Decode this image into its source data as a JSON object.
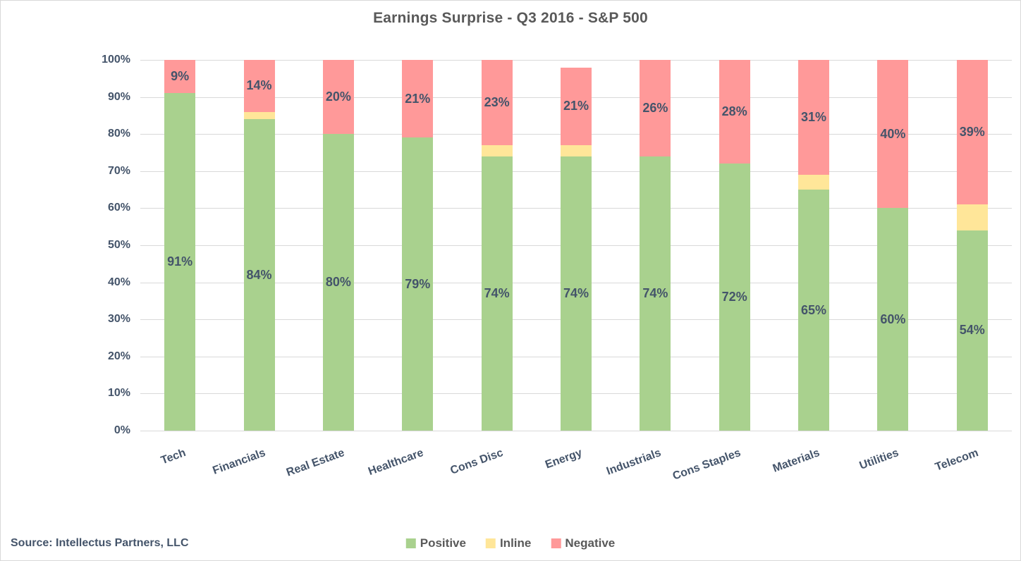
{
  "title": "Earnings Surprise - Q3 2016 - S&P 500",
  "source_text": "Source: Intellectus Partners, LLC",
  "colors": {
    "positive": "#A9D18E",
    "inline": "#FFE699",
    "negative": "#FF9999",
    "axis_text": "#44546A",
    "title_text": "#595959",
    "gridline": "#D9D9D9"
  },
  "legend": {
    "items": [
      {
        "label": "Positive",
        "color": "#A9D18E"
      },
      {
        "label": "Inline",
        "color": "#FFE699"
      },
      {
        "label": "Negative",
        "color": "#FF9999"
      }
    ]
  },
  "chart_data": {
    "type": "bar",
    "stacked": true,
    "title": "Earnings Surprise - Q3 2016 - S&P 500",
    "categories": [
      "Tech",
      "Financials",
      "Real Estate",
      "Healthcare",
      "Cons Disc",
      "Energy",
      "Industrials",
      "Cons Staples",
      "Materials",
      "Utilities",
      "Telecom"
    ],
    "series": [
      {
        "name": "Positive",
        "color": "#A9D18E",
        "values": [
          91,
          84,
          80,
          79,
          74,
          74,
          74,
          72,
          65,
          60,
          54
        ],
        "labels_visible": true
      },
      {
        "name": "Inline",
        "color": "#FFE699",
        "values": [
          0,
          2,
          0,
          0,
          3,
          3,
          0,
          0,
          4,
          0,
          7
        ],
        "labels_visible": false
      },
      {
        "name": "Negative",
        "color": "#FF9999",
        "values": [
          9,
          14,
          20,
          21,
          23,
          21,
          26,
          28,
          31,
          40,
          39
        ],
        "labels_visible": true
      }
    ],
    "stack_totals": [
      100,
      100,
      100,
      100,
      100,
      98,
      100,
      100,
      100,
      100,
      100
    ],
    "data_label_format": "{value}%",
    "y_axis": {
      "min": 0,
      "max": 100,
      "tick_step": 10,
      "tick_labels": [
        "0%",
        "10%",
        "20%",
        "30%",
        "40%",
        "50%",
        "60%",
        "70%",
        "80%",
        "90%",
        "100%"
      ],
      "grid": true
    },
    "legend_position": "bottom"
  }
}
